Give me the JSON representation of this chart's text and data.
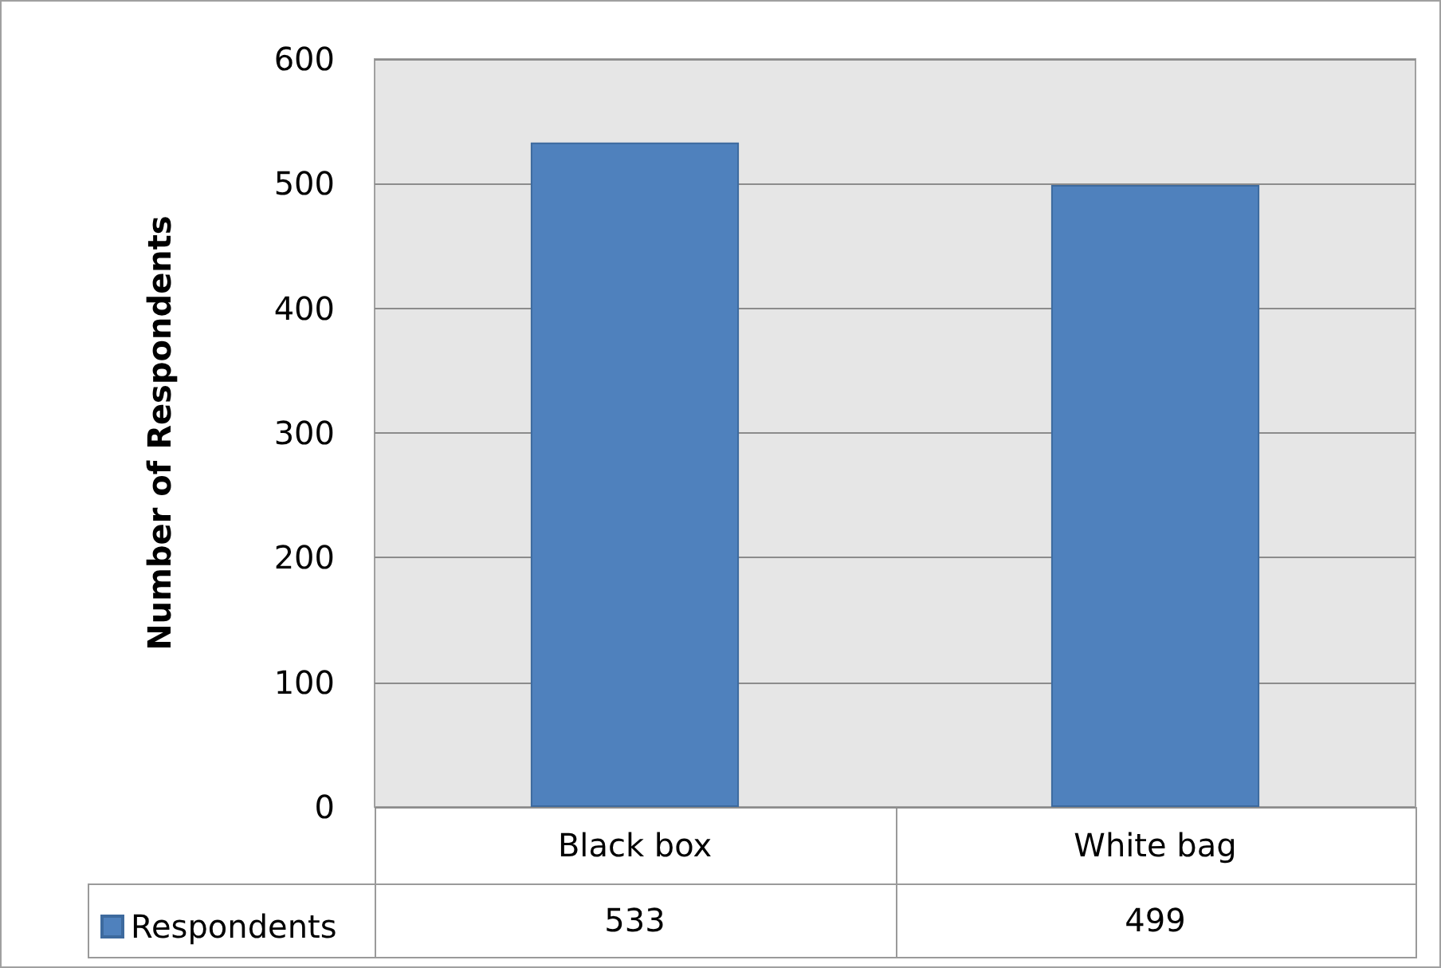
{
  "chart_data": {
    "type": "bar",
    "ylabel": "Number of Respondents",
    "categories": [
      "Black box",
      "White bag"
    ],
    "series": [
      {
        "name": "Respondents",
        "color": "#4f81bd",
        "values": [
          533,
          499
        ]
      }
    ],
    "ylim": [
      0,
      600
    ],
    "yticks": [
      0,
      100,
      200,
      300,
      400,
      500,
      600
    ],
    "grid": "y",
    "legend": "bottom left",
    "data_labels": true
  }
}
